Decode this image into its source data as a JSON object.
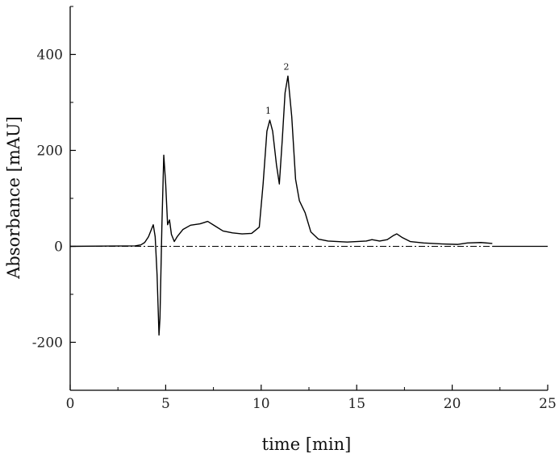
{
  "chart_data": {
    "type": "line",
    "xlabel": "time [min]",
    "ylabel": "Absorbance [mAU]",
    "xlim": [
      0,
      25
    ],
    "ylim": [
      -300,
      500
    ],
    "x_ticks": [
      0,
      5,
      10,
      15,
      20,
      25
    ],
    "x_tick_labels": [
      "0",
      "5",
      "10",
      "15",
      "20",
      "25"
    ],
    "y_ticks": [
      -200,
      0,
      200,
      400
    ],
    "y_tick_labels": [
      "-200",
      "0",
      "200",
      "400"
    ],
    "grid": false,
    "zero_line": true,
    "series": [
      {
        "style": "solid",
        "color": "#000000",
        "x": [
          0,
          3.4,
          3.7,
          3.9,
          4.1,
          4.25,
          4.35,
          4.45,
          4.55,
          4.65,
          4.7,
          4.8,
          4.9,
          5.0,
          5.1,
          5.2,
          5.3,
          5.45,
          5.6,
          5.9,
          6.3,
          6.8,
          7.2,
          7.6,
          8.0,
          8.5,
          9.0,
          9.5,
          9.9,
          10.1,
          10.3,
          10.45,
          10.6,
          10.8,
          10.95,
          11.1,
          11.25,
          11.4,
          11.6,
          11.8,
          12.0,
          12.3,
          12.6,
          13.0,
          13.5,
          14.0,
          14.5,
          15.0,
          15.5,
          15.8,
          16.2,
          16.6,
          16.9,
          17.1,
          17.4,
          17.8,
          18.5,
          19.5,
          20.3,
          20.8,
          21.5,
          22.1
        ],
        "y": [
          0,
          1,
          3,
          8,
          20,
          35,
          45,
          20,
          -60,
          -185,
          -150,
          40,
          190,
          130,
          45,
          55,
          25,
          10,
          20,
          35,
          44,
          47,
          52,
          42,
          32,
          28,
          26,
          27,
          40,
          130,
          240,
          263,
          240,
          170,
          130,
          220,
          320,
          355,
          270,
          140,
          95,
          70,
          30,
          15,
          11,
          10,
          9,
          10,
          11,
          14,
          11,
          14,
          22,
          26,
          18,
          10,
          7,
          5,
          4,
          7,
          8,
          6
        ]
      },
      {
        "style": "dash-dot",
        "color": "#000000",
        "x": [
          0,
          22.1
        ],
        "y": [
          0,
          0
        ]
      }
    ],
    "annotations": [
      {
        "text": "1",
        "x": 10.45,
        "y": 263
      },
      {
        "text": "2",
        "x": 11.4,
        "y": 355
      }
    ]
  }
}
